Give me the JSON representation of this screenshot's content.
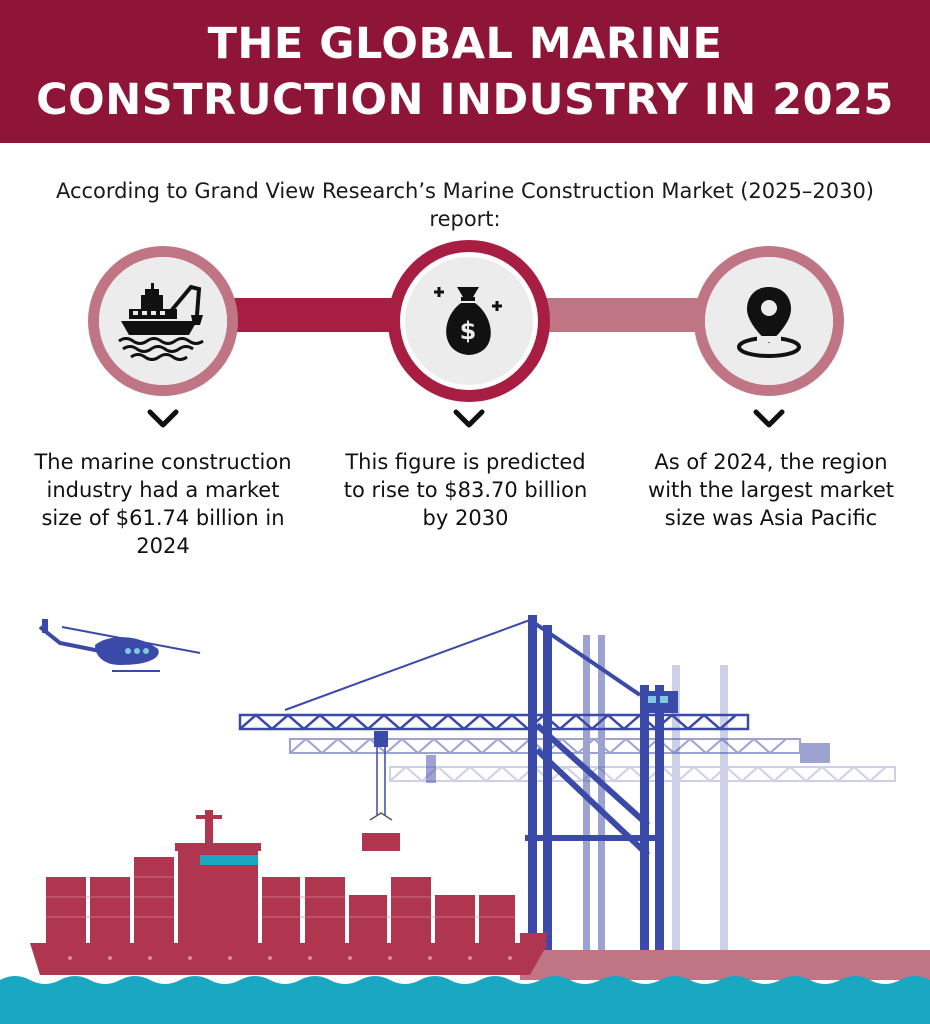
{
  "header": {
    "title_line1": "THE GLOBAL MARINE",
    "title_line2": "CONSTRUCTION INDUSTRY IN 2025"
  },
  "intro": {
    "text": "According to Grand View Research’s Marine Construction Market (2025–2030) report:"
  },
  "steps": [
    {
      "icon": "dredger-ship-icon",
      "caption": "The marine construction industry had a market size of $61.74 billion in 2024"
    },
    {
      "icon": "money-bag-icon",
      "caption": "This figure is predicted to rise to $83.70 billion by 2030"
    },
    {
      "icon": "location-pin-icon",
      "caption": "As of 2024, the region with the largest market size was Asia Pacific"
    }
  ],
  "colors": {
    "banner": "#8e1537",
    "ring_dark": "#a81d42",
    "ring_light": "#c07585",
    "ship_hull": "#b0354e",
    "crane_blue": "#3b4aa8",
    "sea": "#1aa7c1"
  }
}
